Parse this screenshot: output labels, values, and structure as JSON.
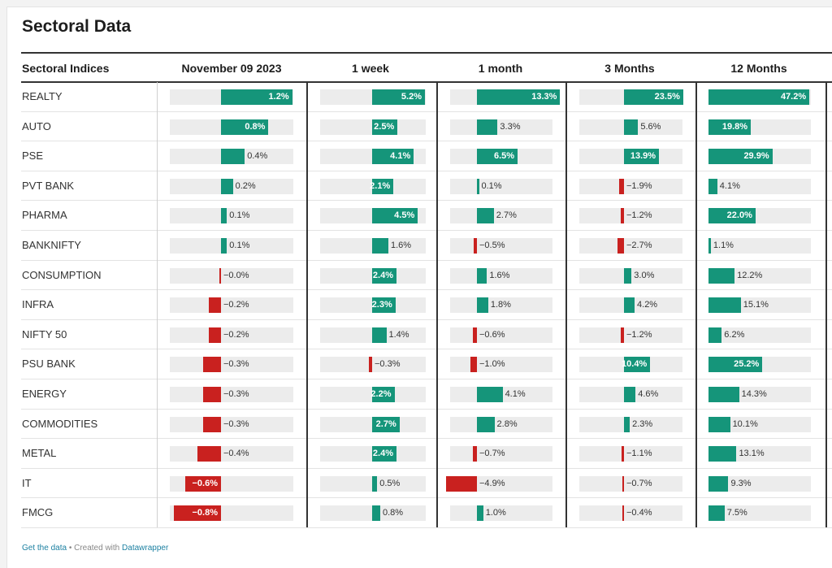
{
  "page": {
    "title": "Sectoral Data",
    "footer": {
      "get_data": "Get the data",
      "sep": " • Created with ",
      "credit": "Datawrapper"
    }
  },
  "colors": {
    "positive": "#15957a",
    "negative": "#c9211f",
    "track": "#ececec"
  },
  "chart_data": {
    "type": "table",
    "title": "Sectoral Data",
    "row_header": "Sectoral Indices",
    "unit": "%",
    "columns": [
      "November 09 2023",
      "1 week",
      "1 month",
      "3 Months",
      "12 Months"
    ],
    "rows": [
      {
        "name": "REALTY",
        "values": [
          1.2,
          5.2,
          13.3,
          23.5,
          47.2
        ]
      },
      {
        "name": "AUTO",
        "values": [
          0.8,
          2.5,
          3.3,
          5.6,
          19.8
        ]
      },
      {
        "name": "PSE",
        "values": [
          0.4,
          4.1,
          6.5,
          13.9,
          29.9
        ]
      },
      {
        "name": "PVT BANK",
        "values": [
          0.2,
          2.1,
          0.1,
          -1.9,
          4.1
        ]
      },
      {
        "name": "PHARMA",
        "values": [
          0.1,
          4.5,
          2.7,
          -1.2,
          22.0
        ]
      },
      {
        "name": "BANKNIFTY",
        "values": [
          0.1,
          1.6,
          -0.5,
          -2.7,
          1.1
        ]
      },
      {
        "name": "CONSUMPTION",
        "values": [
          -0.0,
          2.4,
          1.6,
          3.0,
          12.2
        ]
      },
      {
        "name": "INFRA",
        "values": [
          -0.2,
          2.3,
          1.8,
          4.2,
          15.1
        ]
      },
      {
        "name": "NIFTY 50",
        "values": [
          -0.2,
          1.4,
          -0.6,
          -1.2,
          6.2
        ]
      },
      {
        "name": "PSU BANK",
        "values": [
          -0.3,
          -0.3,
          -1.0,
          10.4,
          25.2
        ]
      },
      {
        "name": "ENERGY",
        "values": [
          -0.3,
          2.2,
          4.1,
          4.6,
          14.3
        ]
      },
      {
        "name": "COMMODITIES",
        "values": [
          -0.3,
          2.7,
          2.8,
          2.3,
          10.1
        ]
      },
      {
        "name": "METAL",
        "values": [
          -0.4,
          2.4,
          -0.7,
          -1.1,
          13.1
        ]
      },
      {
        "name": "IT",
        "values": [
          -0.6,
          0.5,
          -4.9,
          -0.7,
          9.3
        ]
      },
      {
        "name": "FMCG",
        "values": [
          -0.8,
          0.8,
          1.0,
          -0.4,
          7.5
        ]
      }
    ],
    "labels": [
      [
        "1.2%",
        "5.2%",
        "13.3%",
        "23.5%",
        "47.2%"
      ],
      [
        "0.8%",
        "2.5%",
        "3.3%",
        "5.6%",
        "19.8%"
      ],
      [
        "0.4%",
        "4.1%",
        "6.5%",
        "13.9%",
        "29.9%"
      ],
      [
        "0.2%",
        "2.1%",
        "0.1%",
        "−1.9%",
        "4.1%"
      ],
      [
        "0.1%",
        "4.5%",
        "2.7%",
        "−1.2%",
        "22.0%"
      ],
      [
        "0.1%",
        "1.6%",
        "−0.5%",
        "−2.7%",
        "1.1%"
      ],
      [
        "−0.0%",
        "2.4%",
        "1.6%",
        "3.0%",
        "12.2%"
      ],
      [
        "−0.2%",
        "2.3%",
        "1.8%",
        "4.2%",
        "15.1%"
      ],
      [
        "−0.2%",
        "1.4%",
        "−0.6%",
        "−1.2%",
        "6.2%"
      ],
      [
        "−0.3%",
        "−0.3%",
        "−1.0%",
        "10.4%",
        "25.2%"
      ],
      [
        "−0.3%",
        "2.2%",
        "4.1%",
        "4.6%",
        "14.3%"
      ],
      [
        "−0.3%",
        "2.7%",
        "2.8%",
        "2.3%",
        "10.1%"
      ],
      [
        "−0.4%",
        "2.4%",
        "−0.7%",
        "−1.1%",
        "13.1%"
      ],
      [
        "−0.6%",
        "0.5%",
        "−4.9%",
        "−0.7%",
        "9.3%"
      ],
      [
        "−0.8%",
        "0.8%",
        "1.0%",
        "−0.4%",
        "7.5%"
      ]
    ]
  }
}
